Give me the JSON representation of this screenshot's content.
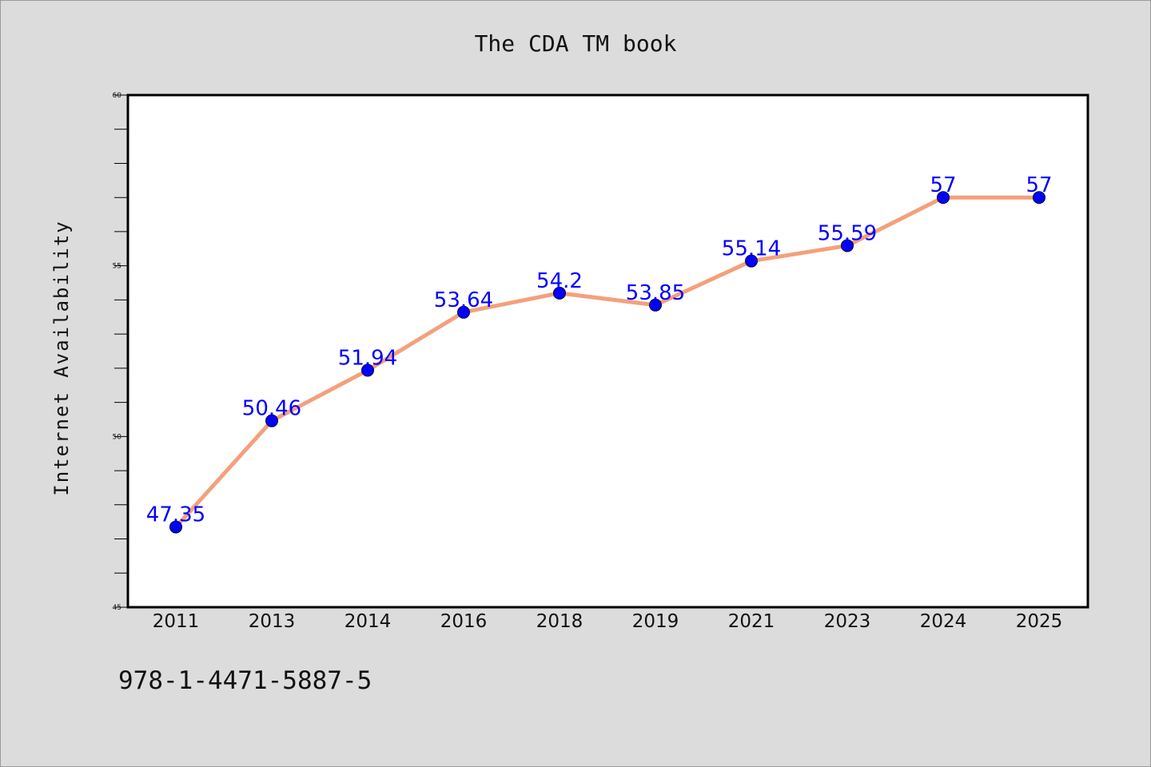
{
  "colors": {
    "background": "#dcdcdc",
    "plot_background": "#ffffff",
    "line": "#f4a07c",
    "marker": "#0000ff",
    "data_label": "#0000ff",
    "text": "#111111"
  },
  "footer_text": "978-1-4471-5887-5",
  "chart_data": {
    "type": "line",
    "title": "The CDA TM book",
    "xlabel": "",
    "ylabel": "Internet Availability",
    "categories": [
      "2011",
      "2013",
      "2014",
      "2016",
      "2018",
      "2019",
      "2021",
      "2023",
      "2024",
      "2025"
    ],
    "series": [
      {
        "values": [
          47.35,
          50.46,
          51.94,
          53.64,
          54.2,
          53.85,
          55.14,
          55.59,
          57,
          57
        ],
        "labels": [
          "47.35",
          "50.46",
          "51.94",
          "53.64",
          "54.2",
          "53.85",
          "55.14",
          "55.59",
          "57",
          "57"
        ]
      }
    ],
    "ylim": [
      45,
      60
    ],
    "yticks": [
      "45",
      "50",
      "55",
      "60"
    ],
    "y_minor_step": 1,
    "grid": false,
    "legend": "none"
  }
}
